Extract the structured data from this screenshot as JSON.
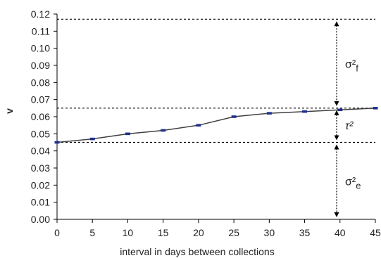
{
  "chart_data": {
    "type": "line",
    "xlabel": "interval in days between collections",
    "ylabel": "v",
    "xlim": [
      0,
      45
    ],
    "ylim": [
      0,
      0.12
    ],
    "xticks": [
      "0",
      "5",
      "10",
      "15",
      "20",
      "25",
      "30",
      "35",
      "40",
      "45"
    ],
    "yticks": [
      "0.00",
      "0.01",
      "0.02",
      "0.03",
      "0.04",
      "0.05",
      "0.06",
      "0.07",
      "0.08",
      "0.09",
      "0.10",
      "0.11",
      "0.12"
    ],
    "grid": false,
    "x": [
      0,
      5,
      10,
      15,
      20,
      25,
      30,
      35,
      40,
      45
    ],
    "series": [
      {
        "values": [
          0.045,
          0.047,
          0.05,
          0.052,
          0.055,
          0.06,
          0.062,
          0.063,
          0.064,
          0.065
        ]
      }
    ],
    "reference_lines": [
      0.117,
      0.065,
      0.045
    ],
    "annotations": [
      {
        "symbol": "σ²",
        "subscript": "f",
        "from": 0.065,
        "to": 0.117
      },
      {
        "symbol": "τ²",
        "subscript": "",
        "from": 0.045,
        "to": 0.065
      },
      {
        "symbol": "σ²",
        "subscript": "e",
        "from": 0,
        "to": 0.045
      }
    ],
    "colors": {
      "line": "#404040",
      "marker": "#1f2f8f",
      "reference": "#000000"
    }
  }
}
